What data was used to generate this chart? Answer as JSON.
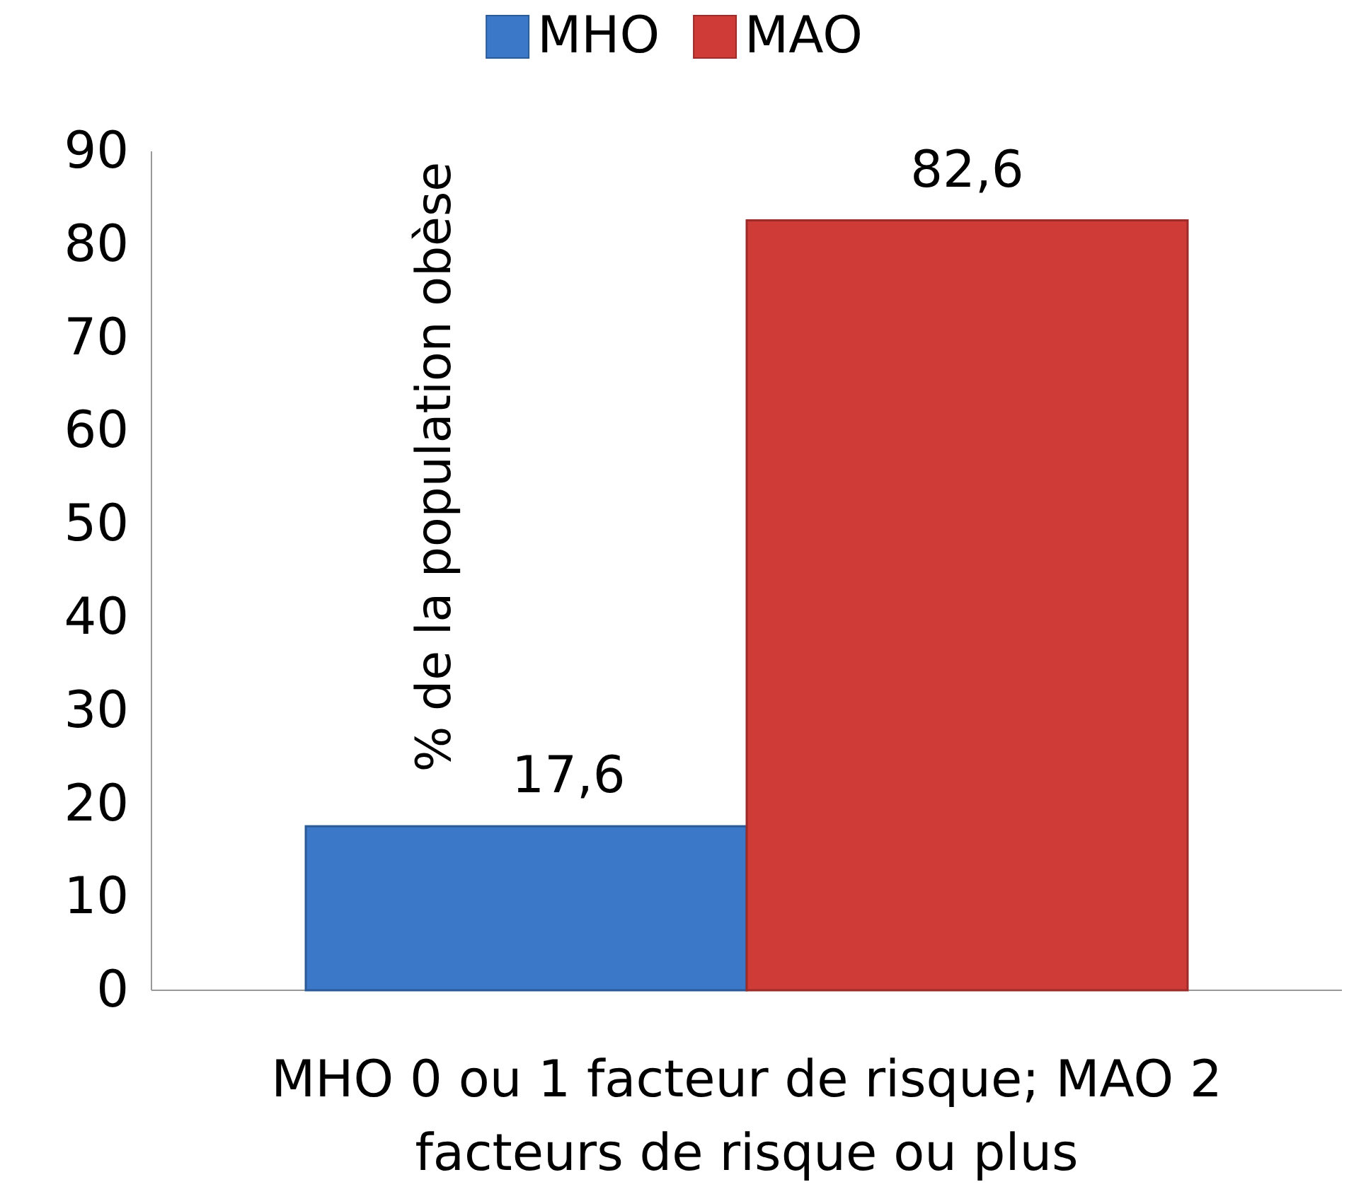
{
  "chart_data": {
    "type": "bar",
    "ylabel": "% de la population obèse",
    "categories": [
      "MHO 0 ou 1 facteur de risque; MAO 2 facteurs de risque ou plus"
    ],
    "series": [
      {
        "name": "MHO",
        "color": "#3b78c8",
        "values": [
          17.6
        ],
        "value_labels": [
          "17,6"
        ]
      },
      {
        "name": "MAO",
        "color": "#cf3b37",
        "values": [
          82.6
        ],
        "value_labels": [
          "82,6"
        ]
      }
    ],
    "ylim": [
      0,
      90
    ],
    "yticks": [
      0,
      10,
      20,
      30,
      40,
      50,
      60,
      70,
      80,
      90
    ],
    "grid": false,
    "legend": "top"
  }
}
